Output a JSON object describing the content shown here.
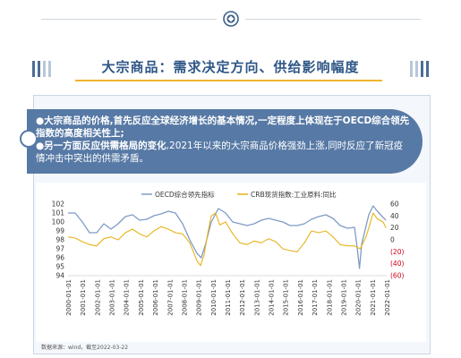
{
  "header": {
    "title": "大宗商品：需求决定方向、供给影响幅度"
  },
  "bullets": [
    {
      "text": "大宗商品的价格,首先反应全球经济增长的基本情况,一定程度上体现在于OECD综合领先指数的高度相关性上;",
      "bold": true
    },
    {
      "text": "另一方面反应供需格局的变化,2021年以来的大宗商品价格强劲上涨,同时反应了新冠疫情冲击中突出的供需矛盾。",
      "bold_prefix": "另一方面反应供需格局的变化",
      "rest": ",2021年以来的大宗商品价格强劲上涨,同时反应了新冠疫情冲击中突出的供需矛盾。"
    }
  ],
  "source": "数据来源：wind，截至2022-03-22",
  "colors": {
    "oecd": "#7f9cc6",
    "crb": "#e6b319",
    "right_axis_negative": "#d0021b",
    "banner": "#5779a5",
    "title": "#2e5686",
    "accent": "#f0b52e"
  },
  "chart_data": {
    "type": "line",
    "legend": [
      "OECD综合领先指标",
      "CRB现货指数:工业原料:同比"
    ],
    "legend_position": "top",
    "x_ticks": [
      "2000-01-01",
      "2001-01-01",
      "2002-01-01",
      "2003-01-01",
      "2004-01-01",
      "2005-01-01",
      "2006-01-01",
      "2007-01-01",
      "2008-01-01",
      "2009-01-01",
      "2010-01-01",
      "2011-01-01",
      "2012-01-01",
      "2013-01-01",
      "2014-01-01",
      "2015-01-01",
      "2016-01-01",
      "2017-01-01",
      "2018-01-01",
      "2019-01-01",
      "2020-01-01",
      "2021-01-01",
      "2022-01-01"
    ],
    "left_axis": {
      "ylim": [
        94,
        102
      ],
      "ticks": [
        94,
        95,
        96,
        97,
        98,
        99,
        100,
        101,
        102
      ]
    },
    "right_axis": {
      "ylim": [
        -60,
        60
      ],
      "ticks": [
        "60",
        "40",
        "20",
        "0",
        "(20)",
        "(40)",
        "(60)"
      ]
    },
    "series": [
      {
        "name": "OECD综合领先指标",
        "axis": "left",
        "x": [
          2000.0,
          2000.5,
          2001.0,
          2001.5,
          2002.0,
          2002.5,
          2003.0,
          2003.5,
          2004.0,
          2004.5,
          2005.0,
          2005.5,
          2006.0,
          2006.5,
          2007.0,
          2007.5,
          2008.0,
          2008.5,
          2009.0,
          2009.3,
          2009.6,
          2010.0,
          2010.5,
          2011.0,
          2011.5,
          2012.0,
          2012.5,
          2013.0,
          2013.5,
          2014.0,
          2014.5,
          2015.0,
          2015.5,
          2016.0,
          2016.5,
          2017.0,
          2017.5,
          2018.0,
          2018.5,
          2019.0,
          2019.5,
          2020.0,
          2020.2,
          2020.35,
          2020.5,
          2020.8,
          2021.0,
          2021.3,
          2021.6,
          2022.0,
          2022.2
        ],
        "values": [
          101.0,
          101.0,
          100.0,
          98.8,
          98.8,
          99.8,
          99.2,
          99.8,
          100.6,
          100.8,
          100.2,
          100.3,
          100.7,
          100.9,
          101.2,
          101.0,
          99.8,
          98.0,
          96.5,
          96.0,
          97.5,
          100.0,
          101.5,
          101.0,
          100.0,
          99.8,
          99.6,
          99.8,
          100.2,
          100.4,
          100.2,
          100.0,
          99.6,
          99.6,
          99.8,
          100.3,
          100.6,
          100.8,
          100.4,
          99.6,
          99.3,
          99.4,
          97.0,
          94.8,
          97.5,
          99.5,
          100.8,
          101.8,
          101.2,
          100.5,
          100.2
        ]
      },
      {
        "name": "CRB现货指数:工业原料:同比",
        "axis": "right",
        "x": [
          2000.0,
          2000.5,
          2001.0,
          2001.5,
          2002.0,
          2002.5,
          2003.0,
          2003.5,
          2004.0,
          2004.5,
          2005.0,
          2005.5,
          2006.0,
          2006.5,
          2007.0,
          2007.5,
          2008.0,
          2008.5,
          2009.0,
          2009.25,
          2009.5,
          2009.75,
          2010.0,
          2010.3,
          2010.6,
          2011.0,
          2011.5,
          2012.0,
          2012.5,
          2013.0,
          2013.5,
          2014.0,
          2014.5,
          2015.0,
          2015.5,
          2016.0,
          2016.5,
          2017.0,
          2017.5,
          2018.0,
          2018.5,
          2019.0,
          2019.5,
          2020.0,
          2020.4,
          2020.8,
          2021.0,
          2021.3,
          2021.6,
          2022.0,
          2022.2
        ],
        "values": [
          5,
          3,
          -3,
          -8,
          -10,
          2,
          5,
          0,
          12,
          18,
          10,
          5,
          15,
          22,
          18,
          12,
          10,
          -5,
          -35,
          -43,
          -25,
          10,
          40,
          45,
          25,
          30,
          10,
          -5,
          -8,
          -2,
          -5,
          2,
          -3,
          -15,
          -18,
          -20,
          -5,
          15,
          12,
          15,
          5,
          -8,
          -10,
          -10,
          -15,
          5,
          20,
          45,
          35,
          30,
          20
        ]
      }
    ]
  }
}
